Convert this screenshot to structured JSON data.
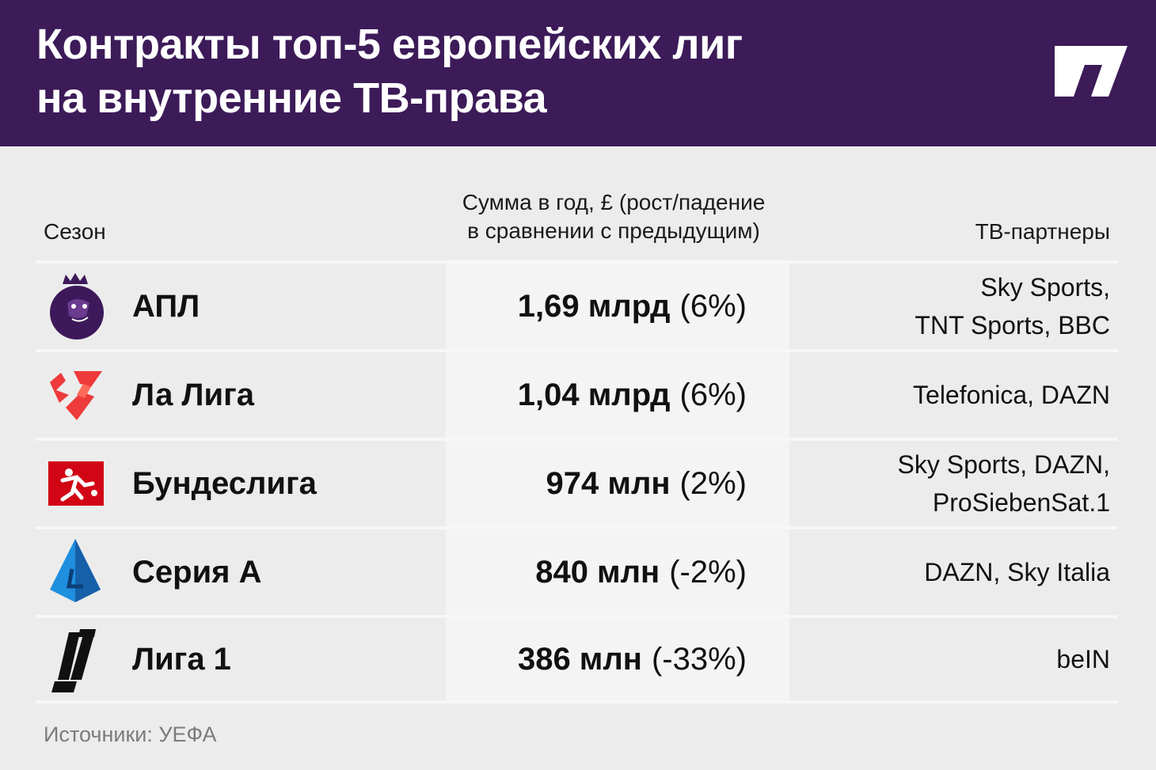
{
  "title_line1": "Контракты топ-5 европейских лиг",
  "title_line2": "на внутренние ТВ-права",
  "columns": {
    "season": "Сезон",
    "sum_line1": "Сумма в год, £ (рост/падение",
    "sum_line2": "в сравнении с предыдущим)",
    "partners": "ТВ-партнеры"
  },
  "rows": [
    {
      "league": "АПЛ",
      "amount": "1,69 млрд",
      "change": "(6%)",
      "partners_line1": "Sky Sports,",
      "partners_line2": "TNT Sports, BBC",
      "logo": "premier-league-lion-icon"
    },
    {
      "league": "Ла Лига",
      "amount": "1,04 млрд",
      "change": "(6%)",
      "partners_line1": "Telefonica, DAZN",
      "partners_line2": "",
      "logo": "laliga-icon"
    },
    {
      "league": "Бундеслига",
      "amount": "974 млн",
      "change": "(2%)",
      "partners_line1": "Sky Sports, DAZN,",
      "partners_line2": "ProSiebenSat.1",
      "logo": "bundesliga-icon"
    },
    {
      "league": "Серия А",
      "amount": "840 млн",
      "change": "(-2%)",
      "partners_line1": "DAZN, Sky Italia",
      "partners_line2": "",
      "logo": "serie-a-icon"
    },
    {
      "league": "Лига 1",
      "amount": "386 млн",
      "change": "(-33%)",
      "partners_line1": "beIN",
      "partners_line2": "",
      "logo": "ligue-1-icon"
    }
  ],
  "source": "Источники: УЕФА",
  "colors": {
    "header_bg": "#3c1b58",
    "background": "#ececec",
    "highlight_column": "#f4f4f4"
  },
  "chart_data": {
    "type": "table",
    "title": "Контракты топ-5 европейских лиг на внутренние ТВ-права",
    "columns": [
      "Сезон",
      "Сумма в год, £ (рост/падение в сравнении с предыдущим)",
      "ТВ-партнеры"
    ],
    "rows": [
      [
        "АПЛ",
        "1,69 млрд (6%)",
        "Sky Sports, TNT Sports, BBC"
      ],
      [
        "Ла Лига",
        "1,04 млрд (6%)",
        "Telefonica, DAZN"
      ],
      [
        "Бундеслига",
        "974 млн (2%)",
        "Sky Sports, DAZN, ProSiebenSat.1"
      ],
      [
        "Серия А",
        "840 млн (-2%)",
        "DAZN, Sky Italia"
      ],
      [
        "Лига 1",
        "386 млн (-33%)",
        "beIN"
      ]
    ]
  }
}
